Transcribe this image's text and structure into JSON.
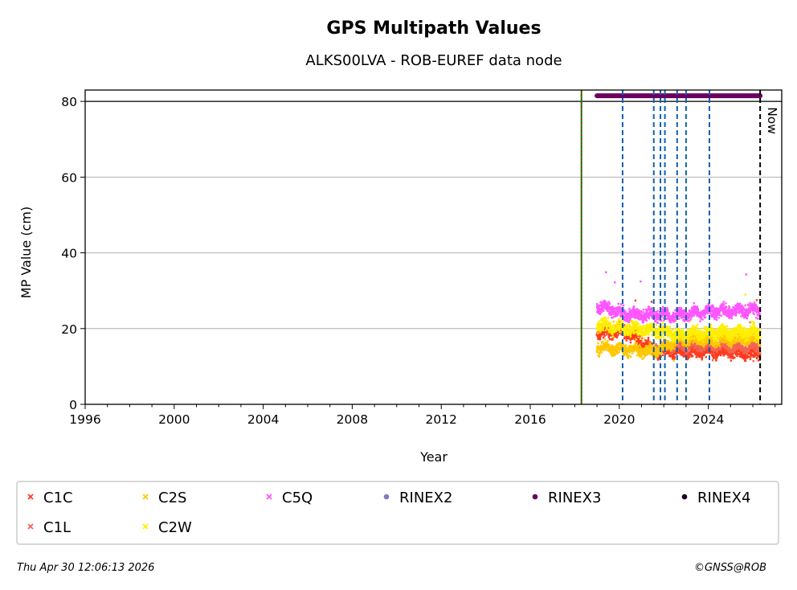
{
  "chart_data": {
    "type": "scatter",
    "title": "GPS Multipath Values",
    "subtitle": "ALKS00LVA - ROB-EUREF data node",
    "xlabel": "Year",
    "ylabel": "MP Value (cm)",
    "xlim": [
      1996,
      2027.3
    ],
    "ylim": [
      0,
      83
    ],
    "x_ticks": [
      1996,
      2000,
      2004,
      2008,
      2012,
      2016,
      2020,
      2024
    ],
    "y_ticks": [
      0,
      20,
      40,
      60,
      80
    ],
    "grid": "horizontal",
    "reference_line_y": 80,
    "start_line": {
      "x": 2018.3,
      "colors": [
        "#008000",
        "#cc0000"
      ]
    },
    "now_line": {
      "x": 2026.33,
      "label": "Now"
    },
    "equipment_change_lines_x": [
      2020.15,
      2021.55,
      2021.85,
      2022.05,
      2022.6,
      2023.0,
      2024.05
    ],
    "rinex3_bar": {
      "start": 2019.0,
      "end": 2026.33,
      "y": 81.5
    },
    "series": [
      {
        "name": "C1C",
        "color": "#ff3b1f",
        "start": 2019.0,
        "end": 2026.33,
        "segments": [
          [
            2019.0,
            19
          ],
          [
            2020.2,
            19.5
          ],
          [
            2021.6,
            14
          ],
          [
            2022.6,
            14
          ],
          [
            2024.0,
            14
          ],
          [
            2026.33,
            13.5
          ]
        ],
        "spread": 1.5
      },
      {
        "name": "C1L",
        "color": "#f26552",
        "start": 2021.6,
        "end": 2026.33,
        "segments": [
          [
            2021.6,
            15
          ],
          [
            2022.6,
            15.5
          ],
          [
            2024.0,
            15.5
          ],
          [
            2026.33,
            15
          ]
        ],
        "spread": 1.2
      },
      {
        "name": "C2S",
        "color": "#ffc800",
        "start": 2019.0,
        "end": 2026.33,
        "segments": [
          [
            2019.0,
            15
          ],
          [
            2020.2,
            14.5
          ],
          [
            2021.6,
            14
          ],
          [
            2022.6,
            17
          ],
          [
            2024.0,
            17
          ],
          [
            2026.33,
            17.5
          ]
        ],
        "spread": 1.4
      },
      {
        "name": "C2W",
        "color": "#ffee00",
        "start": 2019.0,
        "end": 2026.33,
        "segments": [
          [
            2019.0,
            21
          ],
          [
            2020.2,
            20
          ],
          [
            2021.6,
            19.5
          ],
          [
            2022.6,
            18.5
          ],
          [
            2024.0,
            19
          ],
          [
            2026.33,
            19
          ]
        ],
        "spread": 1.6
      },
      {
        "name": "C5Q",
        "color": "#ff55ff",
        "start": 2019.0,
        "end": 2026.33,
        "segments": [
          [
            2019.0,
            26
          ],
          [
            2020.2,
            24
          ],
          [
            2021.6,
            23.5
          ],
          [
            2022.6,
            23.5
          ],
          [
            2024.0,
            24.5
          ],
          [
            2026.33,
            25
          ]
        ],
        "spread": 1.5
      }
    ],
    "legend": {
      "placement": "below",
      "entries": [
        {
          "label": "C1C",
          "marker": "x",
          "color": "#ff3b1f"
        },
        {
          "label": "C2S",
          "marker": "x",
          "color": "#ffc800"
        },
        {
          "label": "C5Q",
          "marker": "x",
          "color": "#ff55ff"
        },
        {
          "label": "RINEX2",
          "marker": "dot",
          "color": "#7b7bbf"
        },
        {
          "label": "RINEX3",
          "marker": "dot",
          "color": "#6a0060"
        },
        {
          "label": "RINEX4",
          "marker": "dot",
          "color": "#1a0020"
        },
        {
          "label": "C1L",
          "marker": "x",
          "color": "#f26552"
        },
        {
          "label": "C2W",
          "marker": "x",
          "color": "#ffee00"
        }
      ]
    }
  },
  "footer": {
    "timestamp": "Thu Apr 30 12:06:13 2026",
    "copyright": "©GNSS@ROB"
  }
}
